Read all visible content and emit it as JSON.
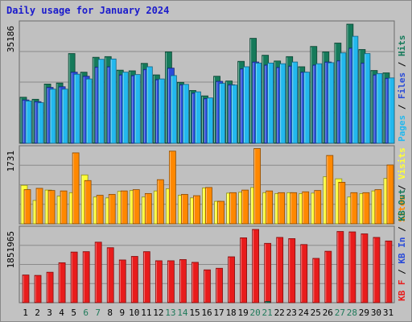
{
  "title": "Daily usage for January 2024",
  "colors": {
    "hits": "#157a5a",
    "files": "#2a4bd8",
    "pages": "#22b8ee",
    "visits": "#ffff33",
    "sites": "#ff8800",
    "kbin": "#e81c1c",
    "kbout": "#157a5a",
    "weekend_label": "#1f7a5a",
    "weekday_label": "#000000",
    "title": "#1a1acc"
  },
  "chart_data": [
    {
      "type": "bar",
      "panel": "top",
      "ymax_label": "35186",
      "ymax": 35186,
      "side_labels": [
        "Pages",
        "Files",
        "Hits"
      ],
      "categories": [
        "1",
        "2",
        "3",
        "4",
        "5",
        "6",
        "7",
        "8",
        "9",
        "10",
        "11",
        "12",
        "13",
        "14",
        "15",
        "16",
        "17",
        "18",
        "19",
        "20",
        "21",
        "22",
        "23",
        "24",
        "25",
        "26",
        "27",
        "28",
        "29",
        "30",
        "31"
      ],
      "series": [
        {
          "name": "Hits",
          "values": [
            13600,
            13000,
            17500,
            17800,
            26500,
            21000,
            25400,
            25600,
            21600,
            21400,
            23600,
            20200,
            27000,
            18000,
            15600,
            14000,
            19800,
            18400,
            24200,
            31000,
            26000,
            24300,
            25600,
            22600,
            28600,
            27000,
            29600,
            35186,
            27700,
            21500,
            20800
          ]
        },
        {
          "name": "Files",
          "values": [
            12800,
            12300,
            16500,
            16700,
            21000,
            19800,
            22500,
            22600,
            20200,
            20000,
            21800,
            18800,
            22200,
            17300,
            14800,
            13200,
            18300,
            17300,
            22000,
            24000,
            23100,
            22400,
            22800,
            21000,
            23100,
            24000,
            24400,
            28100,
            23700,
            20200,
            19200
          ]
        },
        {
          "name": "Pages",
          "values": [
            12500,
            12000,
            16000,
            16000,
            20400,
            19000,
            24800,
            24900,
            21000,
            20300,
            22600,
            19000,
            20000,
            17400,
            15200,
            13400,
            17700,
            17200,
            22600,
            23700,
            23700,
            23500,
            24000,
            21000,
            23500,
            23800,
            26700,
            31600,
            26500,
            20600,
            19300
          ]
        }
      ]
    },
    {
      "type": "bar",
      "panel": "middle",
      "ymax_label": "1731",
      "ymax": 1731,
      "side_labels": [
        "Sites",
        "Visits"
      ],
      "categories": [
        "1",
        "2",
        "3",
        "4",
        "5",
        "6",
        "7",
        "8",
        "9",
        "10",
        "11",
        "12",
        "13",
        "14",
        "15",
        "16",
        "17",
        "18",
        "19",
        "20",
        "21",
        "22",
        "23",
        "24",
        "25",
        "26",
        "27",
        "28",
        "29",
        "30",
        "31"
      ],
      "series": [
        {
          "name": "Visits",
          "values": [
            890,
            540,
            780,
            640,
            720,
            1130,
            620,
            600,
            750,
            770,
            620,
            760,
            810,
            660,
            600,
            830,
            520,
            710,
            730,
            840,
            720,
            700,
            720,
            700,
            710,
            1090,
            1040,
            620,
            700,
            760,
            1050
          ]
        },
        {
          "name": "Sites",
          "values": [
            790,
            820,
            770,
            760,
            1640,
            1000,
            660,
            680,
            760,
            790,
            700,
            1020,
            1680,
            680,
            650,
            840,
            520,
            720,
            780,
            1740,
            760,
            720,
            720,
            740,
            770,
            1580,
            960,
            720,
            720,
            790,
            1360
          ]
        }
      ]
    },
    {
      "type": "bar",
      "panel": "bottom",
      "ymax_label": "1851965",
      "ymax": 1851965,
      "side_labels": [
        "KB F",
        "KB In",
        "KB Out"
      ],
      "categories": [
        "1",
        "2",
        "3",
        "4",
        "5",
        "6",
        "7",
        "8",
        "9",
        "10",
        "11",
        "12",
        "13",
        "14",
        "15",
        "16",
        "17",
        "18",
        "19",
        "20",
        "21",
        "22",
        "23",
        "24",
        "25",
        "26",
        "27",
        "28",
        "29",
        "30",
        "31"
      ],
      "series": [
        {
          "name": "KB F",
          "values": [
            700000,
            690000,
            770000,
            1010000,
            1280000,
            1290000,
            1530000,
            1390000,
            1080000,
            1170000,
            1290000,
            1060000,
            1060000,
            1090000,
            1020000,
            830000,
            870000,
            1160000,
            1640000,
            1851965,
            1500000,
            1650000,
            1620000,
            1470000,
            1120000,
            1300000,
            1800000,
            1790000,
            1740000,
            1650000,
            1560000
          ]
        },
        {
          "name": "KB Out",
          "values": [
            0,
            0,
            0,
            0,
            0,
            0,
            0,
            0,
            0,
            0,
            0,
            0,
            0,
            0,
            0,
            0,
            0,
            0,
            0,
            0,
            30000,
            0,
            0,
            0,
            0,
            0,
            0,
            0,
            0,
            0,
            0
          ]
        }
      ]
    }
  ],
  "weekend_days": [
    "6",
    "7",
    "13",
    "14",
    "20",
    "21",
    "27",
    "28"
  ]
}
